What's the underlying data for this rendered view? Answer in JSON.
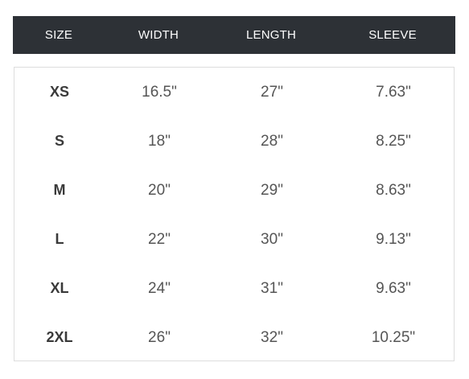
{
  "table": {
    "headers": {
      "size": "SIZE",
      "width": "WIDTH",
      "length": "LENGTH",
      "sleeve": "SLEEVE"
    },
    "rows": [
      {
        "size": "XS",
        "width": "16.5\"",
        "length": "27\"",
        "sleeve": "7.63\""
      },
      {
        "size": "S",
        "width": "18\"",
        "length": "28\"",
        "sleeve": "8.25\""
      },
      {
        "size": "M",
        "width": "20\"",
        "length": "29\"",
        "sleeve": "8.63\""
      },
      {
        "size": "L",
        "width": "22\"",
        "length": "30\"",
        "sleeve": "9.13\""
      },
      {
        "size": "XL",
        "width": "24\"",
        "length": "31\"",
        "sleeve": "9.63\""
      },
      {
        "size": "2XL",
        "width": "26\"",
        "length": "32\"",
        "sleeve": "10.25\""
      }
    ]
  }
}
